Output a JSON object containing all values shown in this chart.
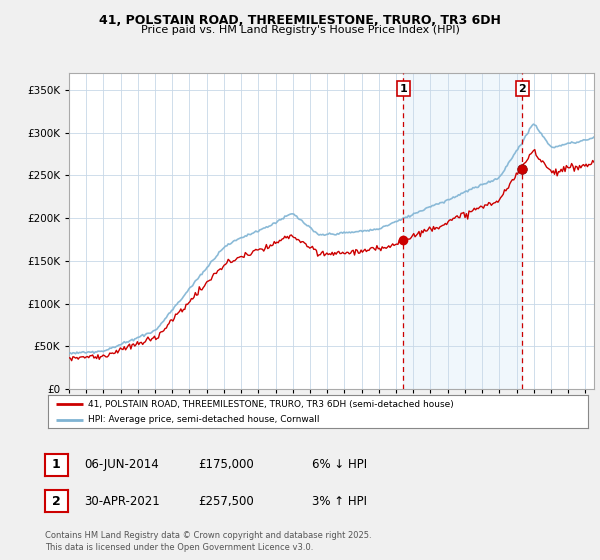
{
  "title1": "41, POLSTAIN ROAD, THREEMILESTONE, TRURO, TR3 6DH",
  "title2": "Price paid vs. HM Land Registry's House Price Index (HPI)",
  "ylim": [
    0,
    370000
  ],
  "yticks": [
    0,
    50000,
    100000,
    150000,
    200000,
    250000,
    300000,
    350000
  ],
  "ytick_labels": [
    "£0",
    "£50K",
    "£100K",
    "£150K",
    "£200K",
    "£250K",
    "£300K",
    "£350K"
  ],
  "xlim_start": 1995.0,
  "xlim_end": 2025.5,
  "sale1_date": 2014.43,
  "sale1_price": 175000,
  "sale2_date": 2021.33,
  "sale2_price": 257500,
  "sale1_label": "1",
  "sale2_label": "2",
  "hpi_color": "#7fb3d3",
  "price_color": "#cc0000",
  "vline_color": "#cc0000",
  "shading_color": "#d6e9f8",
  "legend_label1": "41, POLSTAIN ROAD, THREEMILESTONE, TRURO, TR3 6DH (semi-detached house)",
  "legend_label2": "HPI: Average price, semi-detached house, Cornwall",
  "table_row1": [
    "1",
    "06-JUN-2014",
    "£175,000",
    "6% ↓ HPI"
  ],
  "table_row2": [
    "2",
    "30-APR-2021",
    "£257,500",
    "3% ↑ HPI"
  ],
  "footer": "Contains HM Land Registry data © Crown copyright and database right 2025.\nThis data is licensed under the Open Government Licence v3.0.",
  "background_color": "#f0f0f0",
  "plot_bg_color": "#ffffff",
  "grid_color": "#c8d8e8"
}
